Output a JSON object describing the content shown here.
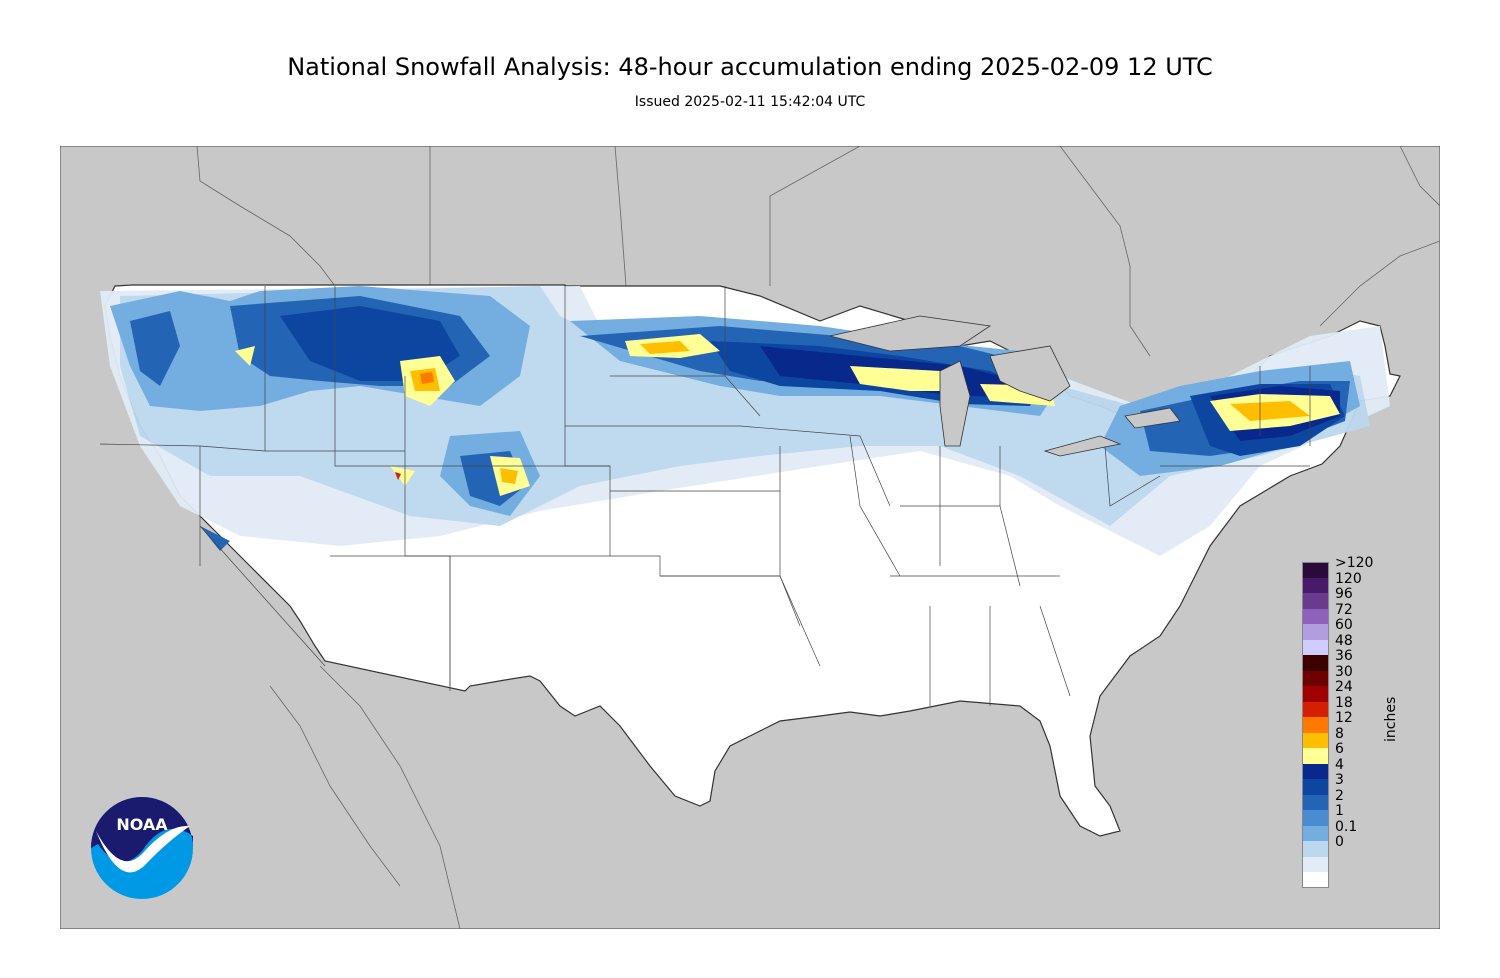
{
  "header": {
    "title": "National Snowfall Analysis: 48-hour accumulation ending 2025-02-09 12 UTC",
    "issued": "Issued 2025-02-11 15:42:04 UTC"
  },
  "map": {
    "colors": {
      "ocean": "#c8c8c8",
      "land_outside": "#c8c8c8",
      "conus": "#ffffff",
      "border": "#555555"
    }
  },
  "legend": {
    "unit": "inches",
    "entries": [
      {
        "label": ">120",
        "color": "#2a0a3a"
      },
      {
        "label": "120",
        "color": "#4a1a6a"
      },
      {
        "label": "96",
        "color": "#6a3a8e"
      },
      {
        "label": "72",
        "color": "#8e62bc"
      },
      {
        "label": "60",
        "color": "#b09ee0"
      },
      {
        "label": "48",
        "color": "#d0ccff"
      },
      {
        "label": "36",
        "color": "#3c0000"
      },
      {
        "label": "30",
        "color": "#6e0000"
      },
      {
        "label": "24",
        "color": "#a00000"
      },
      {
        "label": "18",
        "color": "#d42000"
      },
      {
        "label": "12",
        "color": "#ff7800"
      },
      {
        "label": "8",
        "color": "#ffbe00"
      },
      {
        "label": "6",
        "color": "#ffff96"
      },
      {
        "label": "4",
        "color": "#08288c"
      },
      {
        "label": "3",
        "color": "#0c46a0"
      },
      {
        "label": "2",
        "color": "#2464b4"
      },
      {
        "label": "1",
        "color": "#4a8cd0"
      },
      {
        "label": "0.1",
        "color": "#74aee0"
      },
      {
        "label": "0",
        "color": "#bcd8ee"
      },
      {
        "label": "",
        "color": "#e2ecf6"
      },
      {
        "label": "",
        "color": "#ffffff"
      }
    ]
  },
  "logo": {
    "text": "NOAA",
    "colors": {
      "top": "#1a1a6e",
      "bottom": "#0099e6",
      "bird": "#ffffff"
    }
  }
}
